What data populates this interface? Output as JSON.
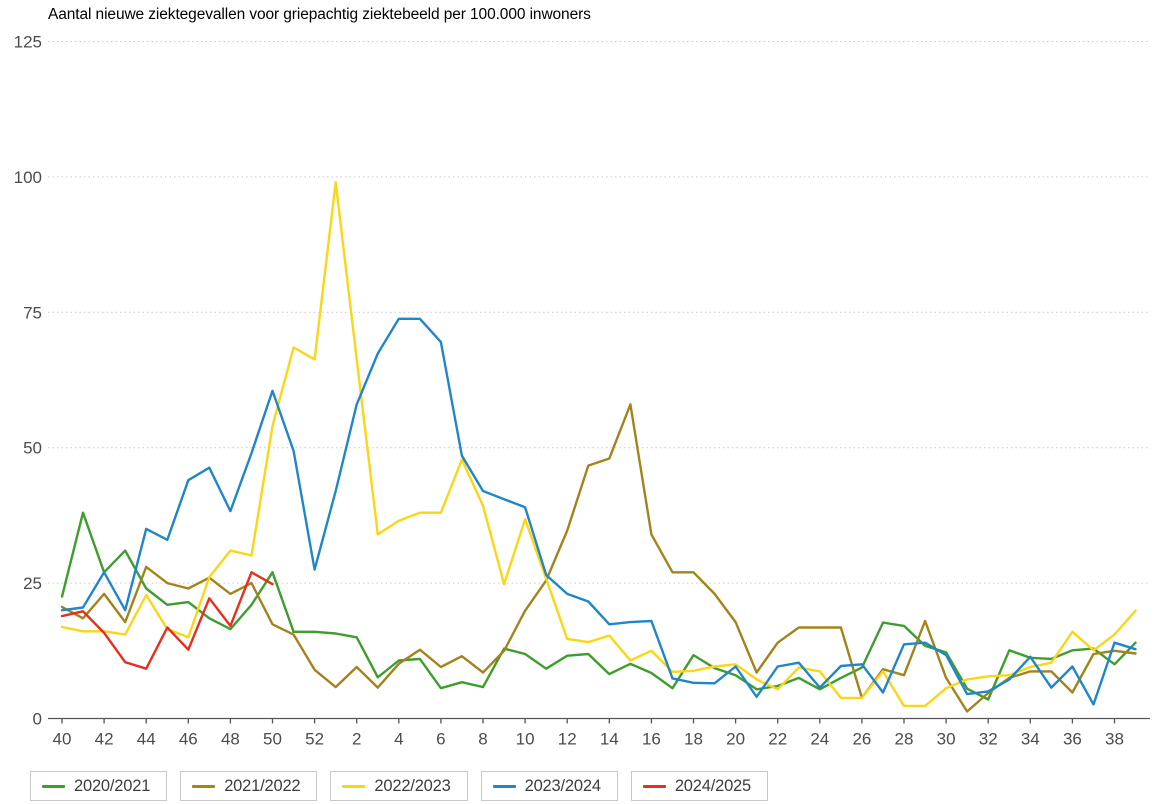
{
  "title": "Aantal nieuwe ziektegevallen voor griepachtig ziektebeeld per 100.000 inwoners",
  "colors": {
    "green": "#3f9d2e",
    "olive": "#a2831c",
    "yellow": "#fad616",
    "blue": "#2186c8",
    "red": "#e52f21",
    "grid": "#c9c9c9",
    "axis": "#555555",
    "tick_text": "#4c4c4c",
    "title_text": "#2b2b2b",
    "legend_text": "#3d3d3d",
    "legend_border": "#c8c8c8"
  },
  "legend": {
    "items": [
      {
        "label": "2020/2021",
        "color_key": "green"
      },
      {
        "label": "2021/2022",
        "color_key": "olive"
      },
      {
        "label": "2022/2023",
        "color_key": "yellow"
      },
      {
        "label": "2023/2024",
        "color_key": "blue"
      },
      {
        "label": "2024/2025",
        "color_key": "red"
      }
    ]
  },
  "chart_data": {
    "type": "line",
    "title": "Aantal nieuwe ziektegevallen voor griepachtig ziektebeeld per 100.000 inwoners",
    "xlabel": "week",
    "ylabel": "",
    "ylim": [
      0,
      125
    ],
    "grid": "horizontal-dotted",
    "legend_position": "bottom-left",
    "x_week_labels": [
      40,
      41,
      42,
      43,
      44,
      45,
      46,
      47,
      48,
      49,
      50,
      51,
      52,
      1,
      2,
      3,
      4,
      5,
      6,
      7,
      8,
      9,
      10,
      11,
      12,
      13,
      14,
      15,
      16,
      17,
      18,
      19,
      20,
      21,
      22,
      23,
      24,
      25,
      26,
      27,
      28,
      29,
      30,
      31,
      32,
      33,
      34,
      35,
      36,
      37,
      38,
      39
    ],
    "x_tick_labels": [
      "40",
      "42",
      "44",
      "46",
      "48",
      "50",
      "52",
      "2",
      "4",
      "6",
      "8",
      "10",
      "12",
      "14",
      "16",
      "18",
      "20",
      "22",
      "24",
      "26",
      "28",
      "30",
      "32",
      "34",
      "36",
      "38"
    ],
    "y_ticks": [
      0,
      25,
      50,
      75,
      100,
      125
    ],
    "series": [
      {
        "name": "2020/2021",
        "color_key": "green",
        "values": [
          22.5,
          38,
          27,
          31,
          24,
          21,
          21.5,
          18.5,
          16.5,
          21,
          27,
          16,
          16,
          15.7,
          15,
          7.6,
          10.7,
          11,
          5.6,
          6.7,
          5.8,
          12.9,
          11.9,
          9.2,
          11.6,
          11.9,
          8.2,
          10.1,
          8.4,
          5.6,
          11.7,
          9.3,
          8,
          5.4,
          6,
          7.5,
          5.4,
          7.5,
          9.4,
          17.7,
          17.1,
          13.4,
          12.2,
          5.5,
          3.5,
          12.6,
          11.2,
          11,
          12.6,
          12.9,
          10,
          14
        ]
      },
      {
        "name": "2021/2022",
        "color_key": "olive",
        "values": [
          20.6,
          18.5,
          23,
          17.8,
          28,
          25,
          24,
          26,
          23,
          25,
          17.4,
          15.5,
          9,
          5.8,
          9.5,
          5.7,
          10.1,
          12.7,
          9.5,
          11.5,
          8.5,
          12.5,
          19.9,
          25.5,
          34.7,
          46.7,
          48,
          58,
          34,
          27,
          27,
          23,
          17.8,
          8.5,
          14,
          16.8,
          16.8,
          16.8,
          3.8,
          9.1,
          8,
          18,
          7.5,
          1.3,
          4.7,
          7.5,
          8.7,
          8.7,
          4.8,
          11.9,
          12.5,
          12
        ]
      },
      {
        "name": "2022/2023",
        "color_key": "yellow",
        "values": [
          16.9,
          16.1,
          16.1,
          15.5,
          22.8,
          16.5,
          15,
          26.1,
          31,
          30.1,
          54,
          68.5,
          66.3,
          99,
          66.3,
          34,
          36.5,
          38,
          38,
          47.8,
          39.3,
          24.8,
          36.8,
          25.8,
          14.7,
          14.1,
          15.3,
          10.7,
          12.5,
          8.6,
          8.8,
          9.6,
          10,
          7.2,
          5.4,
          9.4,
          8.7,
          3.8,
          3.8,
          8.7,
          2.3,
          2.3,
          5.6,
          7.2,
          7.8,
          8,
          9.5,
          10.3,
          16,
          12.6,
          15.5,
          19.9
        ]
      },
      {
        "name": "2023/2024",
        "color_key": "blue",
        "values": [
          20,
          20.5,
          27,
          20,
          35,
          33,
          44,
          46.3,
          38.3,
          49,
          60.5,
          49.4,
          27.5,
          42,
          58,
          67.4,
          73.8,
          73.8,
          69.5,
          48.5,
          42,
          40.5,
          39,
          26.5,
          23,
          21.6,
          17.4,
          17.8,
          18,
          7.4,
          6.6,
          6.5,
          9.6,
          4,
          9.6,
          10.3,
          5.7,
          9.7,
          10,
          4.8,
          13.7,
          14,
          11.7,
          4.5,
          5,
          7.2,
          11.4,
          5.7,
          9.6,
          2.6,
          14,
          12.8
        ]
      },
      {
        "name": "2024/2025",
        "color_key": "red",
        "values": [
          18.9,
          19.8,
          15.8,
          10.4,
          9.2,
          16.8,
          12.7,
          22.2,
          17.1,
          27,
          24.8
        ]
      }
    ]
  }
}
